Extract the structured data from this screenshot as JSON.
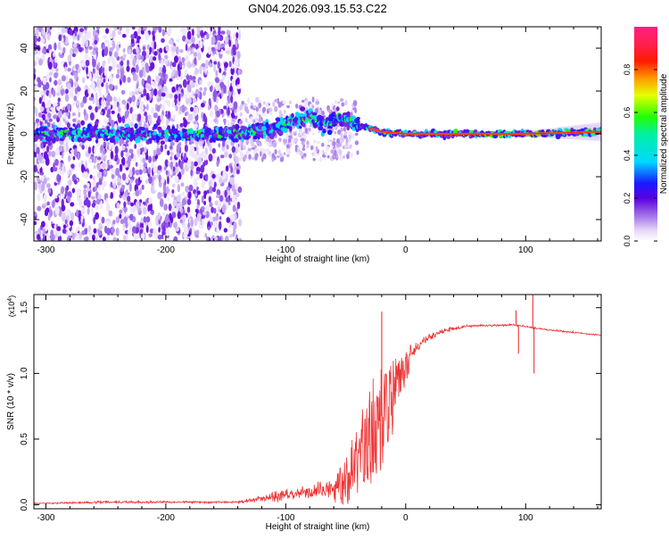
{
  "title": "GN04.2026.093.15.53.C22",
  "colors": {
    "snr_line": "#ee3333",
    "axis": "#000000",
    "spectrogram_noise": "#8a2be2"
  },
  "chart_data": [
    {
      "type": "heatmap",
      "name": "spectrogram",
      "xlabel": "Height of straight line (km)",
      "ylabel": "Frequency (Hz)",
      "xlim": [
        -310,
        163
      ],
      "ylim": [
        -50,
        50
      ],
      "x_ticks": [
        -300,
        -200,
        -100,
        0,
        100
      ],
      "x_tick_labels": [
        "-300",
        "-200",
        "-100",
        "0",
        "100"
      ],
      "y_ticks": [
        -40,
        -20,
        0,
        20,
        40
      ],
      "y_tick_labels": [
        "-40",
        "-20",
        "0",
        "20",
        "40"
      ],
      "noise_region": {
        "x_range": [
          -310,
          -138
        ],
        "y_range": [
          -50,
          50
        ]
      },
      "transition_region": {
        "x_range": [
          -138,
          -40
        ],
        "y_range": [
          -12,
          16
        ]
      },
      "ridge": [
        {
          "x": -310,
          "y": 0
        },
        {
          "x": -140,
          "y": 0
        },
        {
          "x": -110,
          "y": 2
        },
        {
          "x": -95,
          "y": 6
        },
        {
          "x": -80,
          "y": 8
        },
        {
          "x": -65,
          "y": 4
        },
        {
          "x": -55,
          "y": 8
        },
        {
          "x": -40,
          "y": 4
        },
        {
          "x": -20,
          "y": 1
        },
        {
          "x": 0,
          "y": 0
        },
        {
          "x": 100,
          "y": 0
        },
        {
          "x": 163,
          "y": 1
        }
      ]
    },
    {
      "type": "colorbar",
      "name": "normalized-amplitude",
      "label": "Normalized spectral amplitude",
      "range": [
        0,
        1
      ],
      "ticks": [
        0.0,
        0.2,
        0.4,
        0.6,
        0.8
      ],
      "tick_labels": [
        "0.0",
        "0.2",
        "0.4",
        "0.6",
        "0.8"
      ]
    },
    {
      "type": "line",
      "name": "snr",
      "xlabel": "Height of straight line (km)",
      "ylabel": "SNR (10 * v/v)",
      "exponent_label": "(x10",
      "exponent_sup": "4",
      "exponent_close": ")",
      "xlim": [
        -310,
        163
      ],
      "ylim": [
        -0.03,
        1.6
      ],
      "x_ticks": [
        -300,
        -200,
        -100,
        0,
        100
      ],
      "x_tick_labels": [
        "-300",
        "-200",
        "-100",
        "0",
        "100"
      ],
      "y_ticks": [
        0.0,
        0.5,
        1.0,
        1.5
      ],
      "y_tick_labels": [
        "0.0",
        "0.5",
        "1.0",
        "1.5"
      ],
      "envelope": [
        {
          "x": -310,
          "y": 0.01,
          "amp": 0.01
        },
        {
          "x": -250,
          "y": 0.02,
          "amp": 0.02
        },
        {
          "x": -140,
          "y": 0.02,
          "amp": 0.015
        },
        {
          "x": -120,
          "y": 0.05,
          "amp": 0.06
        },
        {
          "x": -100,
          "y": 0.08,
          "amp": 0.1
        },
        {
          "x": -80,
          "y": 0.1,
          "amp": 0.12
        },
        {
          "x": -60,
          "y": 0.12,
          "amp": 0.15
        },
        {
          "x": -45,
          "y": 0.25,
          "amp": 0.3
        },
        {
          "x": -35,
          "y": 0.45,
          "amp": 0.4
        },
        {
          "x": -25,
          "y": 0.6,
          "amp": 0.5
        },
        {
          "x": -15,
          "y": 0.75,
          "amp": 0.45
        },
        {
          "x": -5,
          "y": 0.95,
          "amp": 0.2
        },
        {
          "x": 5,
          "y": 1.15,
          "amp": 0.1
        },
        {
          "x": 15,
          "y": 1.25,
          "amp": 0.07
        },
        {
          "x": 30,
          "y": 1.32,
          "amp": 0.04
        },
        {
          "x": 50,
          "y": 1.36,
          "amp": 0.02
        },
        {
          "x": 90,
          "y": 1.37,
          "amp": 0.015
        },
        {
          "x": 120,
          "y": 1.33,
          "amp": 0.015
        },
        {
          "x": 163,
          "y": 1.29,
          "amp": 0.01
        }
      ],
      "spikes": [
        {
          "x": -20,
          "y": 1.47
        },
        {
          "x": 92,
          "y": 1.48
        },
        {
          "x": 94,
          "y": 1.15
        },
        {
          "x": 106,
          "y": 1.6
        },
        {
          "x": 107,
          "y": 1.0
        }
      ]
    }
  ]
}
